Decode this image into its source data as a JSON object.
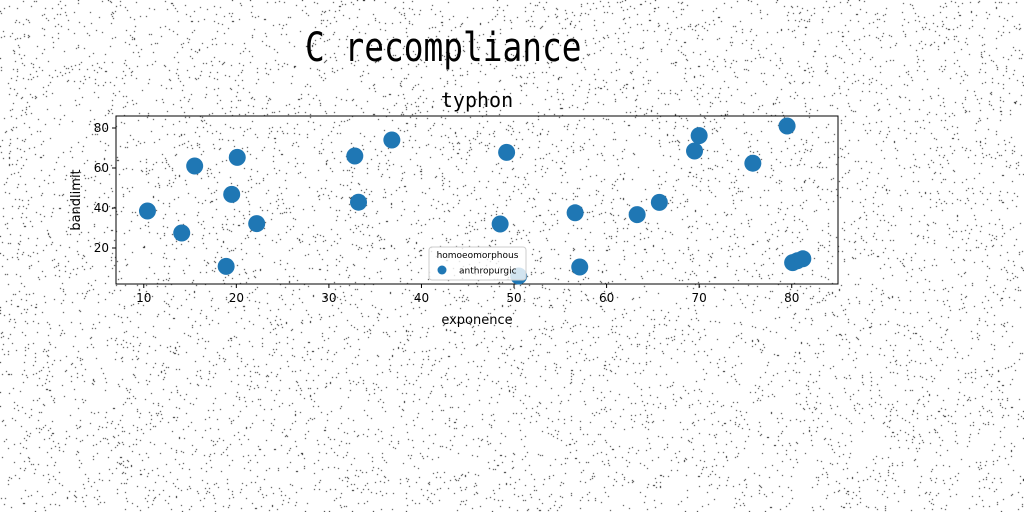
{
  "page": {
    "title": "C recompliance"
  },
  "chart_data": {
    "type": "scatter",
    "title": "typhon",
    "xlabel": "exponence",
    "ylabel": "bandlimit",
    "xlim": [
      7,
      85
    ],
    "ylim": [
      2,
      86
    ],
    "xticks": [
      10,
      20,
      30,
      40,
      50,
      60,
      70,
      80
    ],
    "yticks": [
      20,
      40,
      60,
      80
    ],
    "grid": false,
    "legend": {
      "title": "homoeomorphous",
      "placement": "lower-center"
    },
    "series": [
      {
        "name": "anthropurgic",
        "color": "#1f77b4",
        "points": [
          {
            "x": 10.4,
            "y": 38.5
          },
          {
            "x": 14.1,
            "y": 27.5
          },
          {
            "x": 15.5,
            "y": 61.0
          },
          {
            "x": 18.9,
            "y": 10.8
          },
          {
            "x": 19.5,
            "y": 46.8
          },
          {
            "x": 20.1,
            "y": 65.3
          },
          {
            "x": 22.2,
            "y": 32.2
          },
          {
            "x": 32.8,
            "y": 66.0
          },
          {
            "x": 33.2,
            "y": 42.9
          },
          {
            "x": 36.8,
            "y": 74.0
          },
          {
            "x": 48.5,
            "y": 32.0
          },
          {
            "x": 49.2,
            "y": 67.8
          },
          {
            "x": 50.5,
            "y": 6.0
          },
          {
            "x": 56.6,
            "y": 37.6
          },
          {
            "x": 57.1,
            "y": 10.5
          },
          {
            "x": 63.3,
            "y": 36.7
          },
          {
            "x": 65.7,
            "y": 42.8
          },
          {
            "x": 69.5,
            "y": 68.5
          },
          {
            "x": 70.0,
            "y": 76.2
          },
          {
            "x": 75.8,
            "y": 62.4
          },
          {
            "x": 79.5,
            "y": 81.0
          },
          {
            "x": 80.1,
            "y": 12.7
          },
          {
            "x": 80.6,
            "y": 13.6
          },
          {
            "x": 81.2,
            "y": 14.6
          }
        ]
      }
    ]
  }
}
